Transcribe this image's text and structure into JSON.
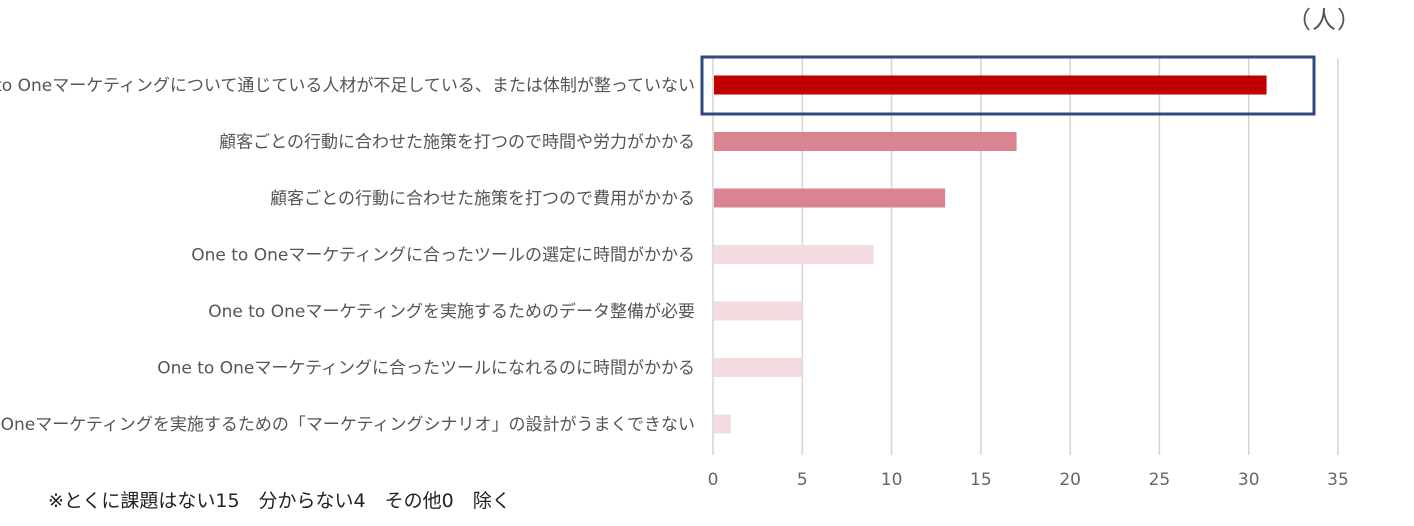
{
  "chart_data": {
    "type": "bar",
    "orientation": "horizontal",
    "unit": "（人）",
    "categories": [
      "One to Oneマーケティングについて通じている人材が不足している、または体制が整っていない",
      "顧客ごとの行動に合わせた施策を打つので時間や労力がかかる",
      "顧客ごとの行動に合わせた施策を打つので費用がかかる",
      "One to Oneマーケティングに合ったツールの選定に時間がかかる",
      "One to Oneマーケティングを実施するためのデータ整備が必要",
      "One to Oneマーケティングに合ったツールになれるのに時間がかかる",
      "One to Oneマーケティングを実施するための「マーケティングシナリオ」の設計がうまくできない"
    ],
    "values": [
      31,
      17,
      13,
      9,
      5,
      5,
      1
    ],
    "colors": [
      "#c00000",
      "#d98490",
      "#d98490",
      "#f4dbe0",
      "#f4dbe0",
      "#f4dbe0",
      "#f4dbe0"
    ],
    "highlight_index": 0,
    "highlight_color": "#2f4a7e",
    "xlim": [
      0,
      35
    ],
    "xticks": [
      0,
      5,
      10,
      15,
      20,
      25,
      30,
      35
    ],
    "grid": "vertical",
    "footnote": "※とくに課題はない15　分からない4　その他0　除く"
  }
}
